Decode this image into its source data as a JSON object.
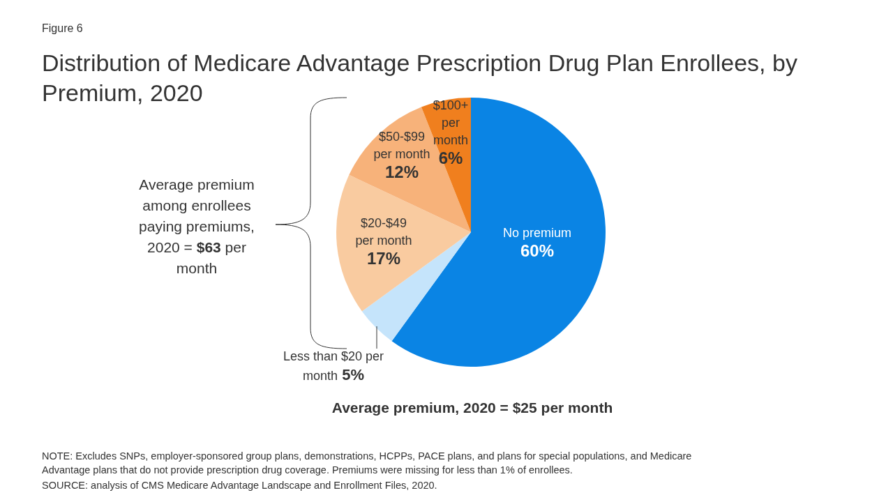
{
  "chart_data": {
    "type": "pie",
    "title": "Distribution of Medicare Advantage Prescription Drug Plan Enrollees, by Premium, 2020",
    "categories": [
      "No premium",
      "Less than $20 per month",
      "$20-$49 per month",
      "$50-$99 per month",
      "$100+ per month"
    ],
    "values": [
      60,
      5,
      17,
      12,
      6
    ],
    "value_labels": [
      "60%",
      "5%",
      "17%",
      "12%",
      "6%"
    ],
    "colors": [
      "#0a84e4",
      "#c5e4fb",
      "#f9cba0",
      "#f7b27a",
      "#f07f1e"
    ],
    "annotations": [
      "Figure 6",
      "Average premium among enrollees paying premiums, 2020 = $63 per month",
      "Average premium, 2020 = $25 per month",
      "NOTE: Excludes SNPs, employer-sponsored group plans, demonstrations, HCPPs, PACE plans, and plans for special populations, and Medicare Advantage plans that do not provide prescription drug coverage. Premiums were missing for less than 1% of enrollees.",
      "SOURCE: analysis of CMS Medicare Advantage Landscape and Enrollment Files, 2020."
    ]
  }
}
